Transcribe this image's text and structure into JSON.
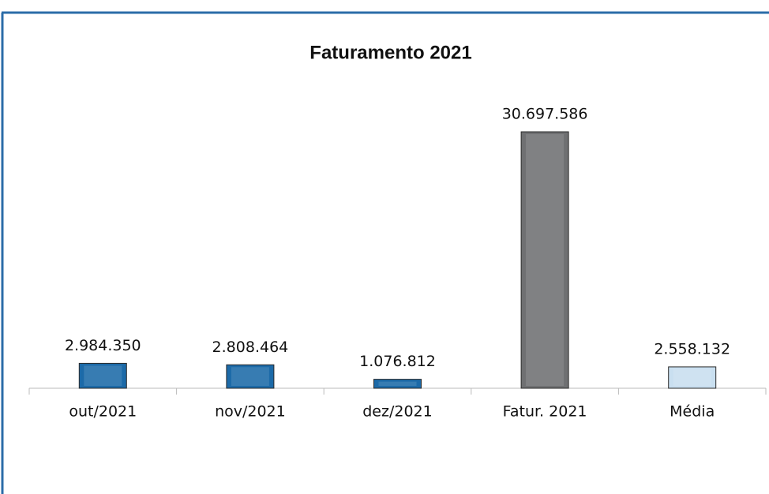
{
  "chart_data": {
    "type": "bar",
    "title": "Faturamento 2021",
    "categories": [
      "out/2021",
      "nov/2021",
      "dez/2021",
      "Fatur. 2021",
      "Média"
    ],
    "values": [
      2984350,
      2808464,
      1076812,
      30697586,
      2558132
    ],
    "value_labels": [
      "2.984.350",
      "2.808.464",
      "1.076.812",
      "30.697.586",
      "2.558.132"
    ],
    "colors": [
      "#1c6aa8",
      "#1c6aa8",
      "#1c6aa8",
      "#6f7072",
      "#c9dff0"
    ]
  }
}
